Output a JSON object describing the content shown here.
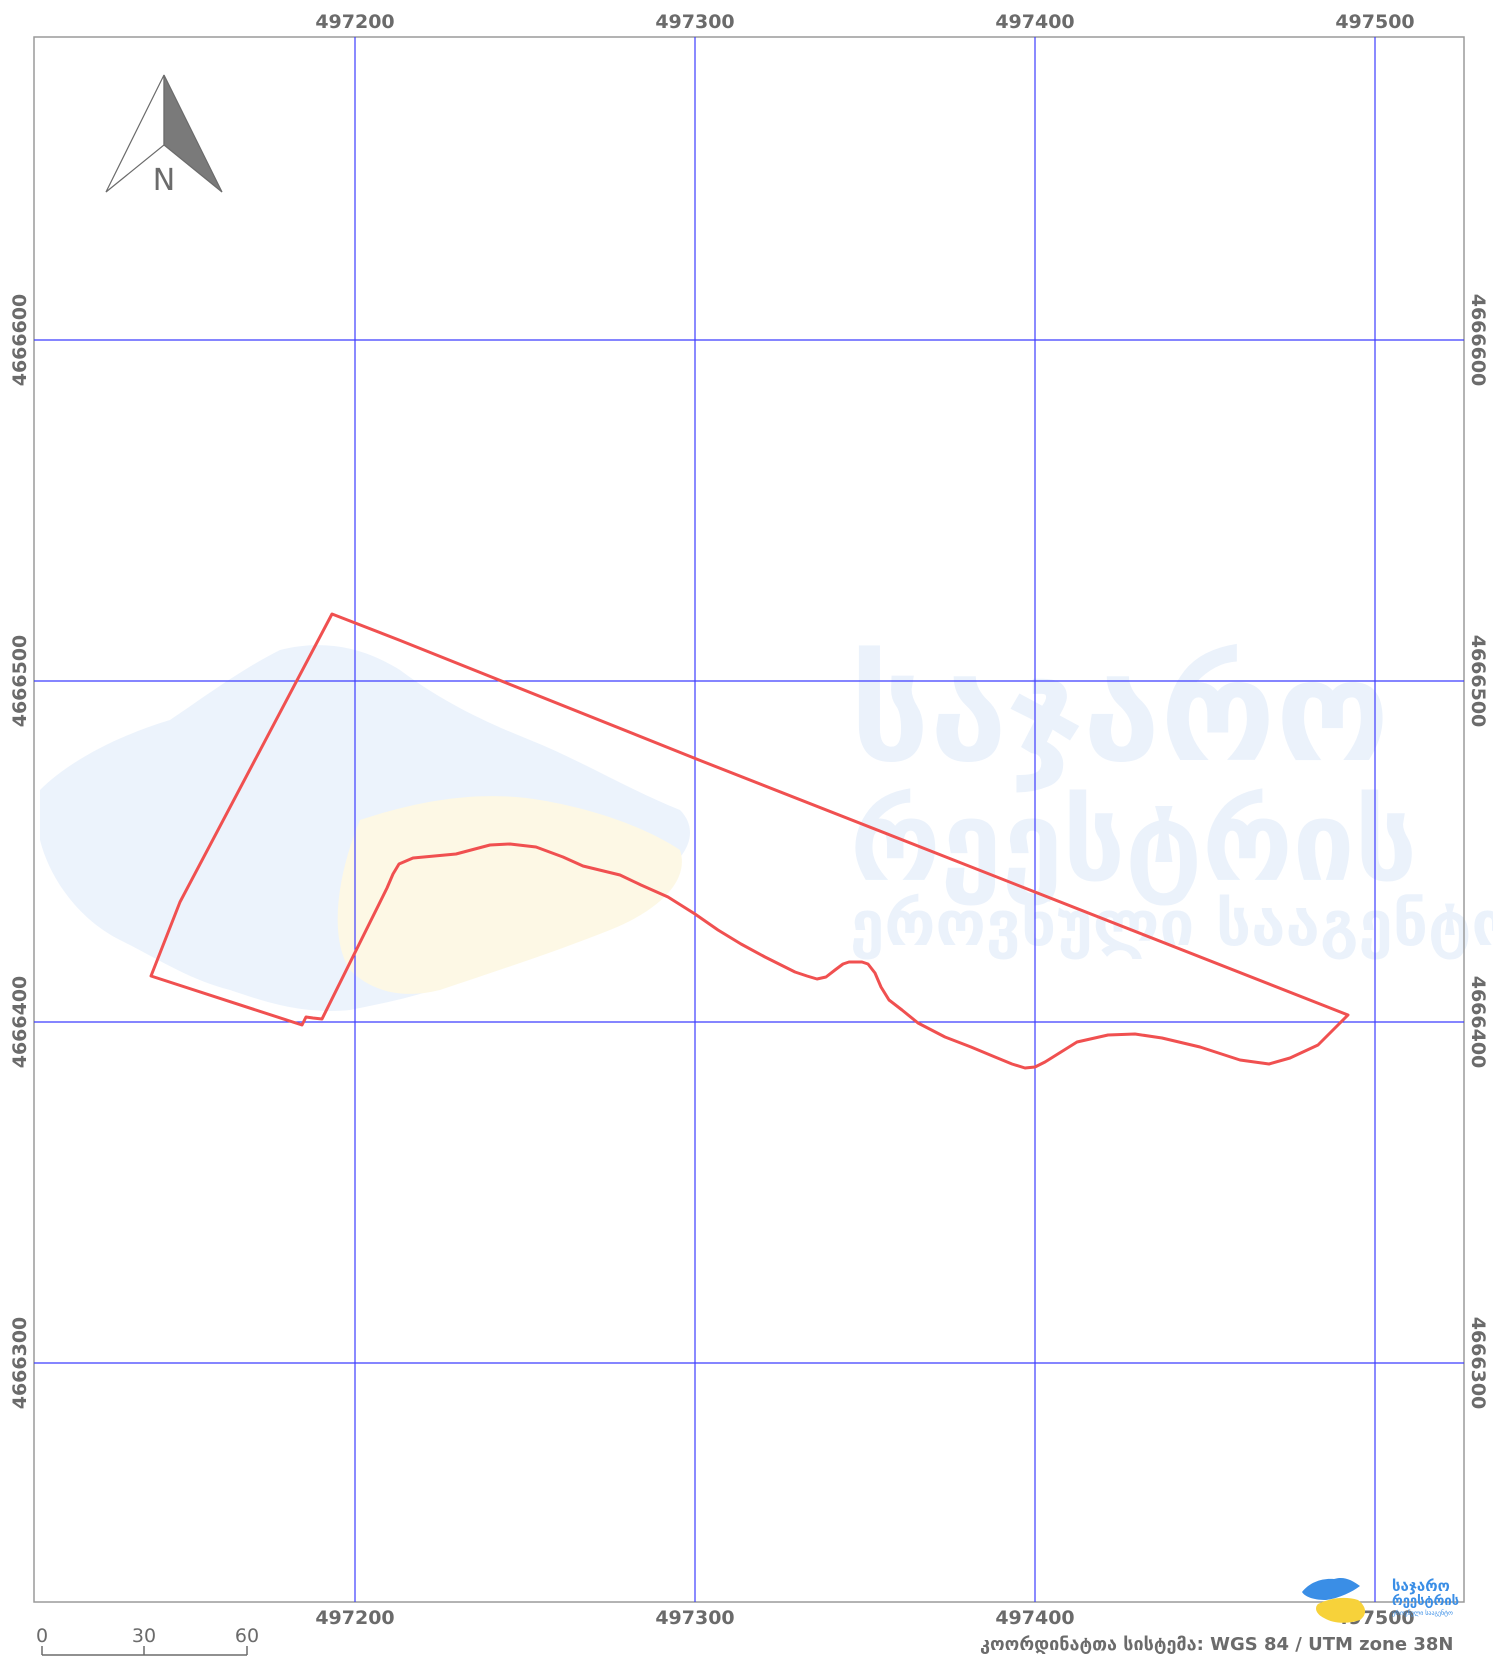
{
  "map": {
    "x_ticks": [
      "497200",
      "497300",
      "497400",
      "497500"
    ],
    "y_ticks": [
      "4666600",
      "4666500",
      "4666400",
      "4666300"
    ],
    "north_arrow_label": "N",
    "scale_bar": {
      "labels": [
        "0",
        "30",
        "60"
      ]
    },
    "crs_label": "კოორდინატთა სისტემა: WGS 84 / UTM zone 38N",
    "watermark": {
      "line1": "საჯარო",
      "line2": "რეესტრის",
      "line3": "ეროვნული სააგენტო"
    },
    "logo": {
      "line1": "საჯარო",
      "line2": "რეესტრის",
      "line3": "ეროვნული სააგენტო"
    },
    "colors": {
      "grid": "#3c3cff",
      "parcel": "#f05050",
      "frame": "#9a9a9a",
      "label": "#6b6b6b",
      "logo_blue": "#3a8ee6",
      "logo_yellow": "#f7d23a"
    }
  }
}
